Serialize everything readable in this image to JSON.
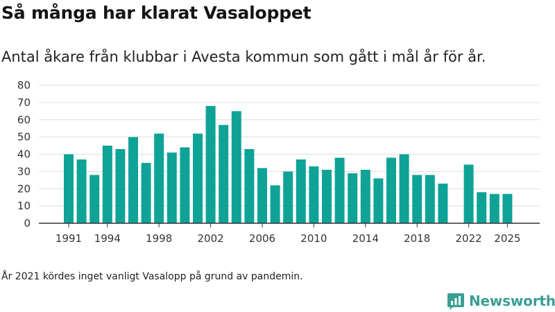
{
  "header": {
    "title": "Så många har klarat Vasaloppet",
    "subtitle": "Antal åkare från klubbar i Avesta kommun som gått i mål år för år."
  },
  "footnote": "År 2021 kördes inget vanligt Vasalopp på grund av pandemin.",
  "brand": {
    "name": "Newsworthy",
    "icon": "newsworthy-logo-icon",
    "color": "#3a9e93"
  },
  "chart_data": {
    "type": "bar",
    "title": "Så många har klarat Vasaloppet",
    "xlabel": "",
    "ylabel": "",
    "ylim": [
      0,
      80
    ],
    "yticks": [
      0,
      10,
      20,
      30,
      40,
      50,
      60,
      70,
      80
    ],
    "xticks": [
      1991,
      1994,
      1998,
      2002,
      2006,
      2010,
      2014,
      2018,
      2022,
      2025
    ],
    "grid": true,
    "color": "#0fa398",
    "categories": [
      1991,
      1992,
      1993,
      1994,
      1995,
      1996,
      1997,
      1998,
      1999,
      2000,
      2001,
      2002,
      2003,
      2004,
      2005,
      2006,
      2007,
      2008,
      2009,
      2010,
      2011,
      2012,
      2013,
      2014,
      2015,
      2016,
      2017,
      2018,
      2019,
      2020,
      2021,
      2022,
      2023,
      2024,
      2025
    ],
    "values": [
      40,
      37,
      28,
      45,
      43,
      50,
      35,
      52,
      41,
      44,
      52,
      68,
      57,
      65,
      43,
      32,
      22,
      30,
      37,
      33,
      31,
      38,
      29,
      31,
      26,
      38,
      40,
      28,
      28,
      23,
      null,
      34,
      18,
      17,
      17
    ]
  }
}
